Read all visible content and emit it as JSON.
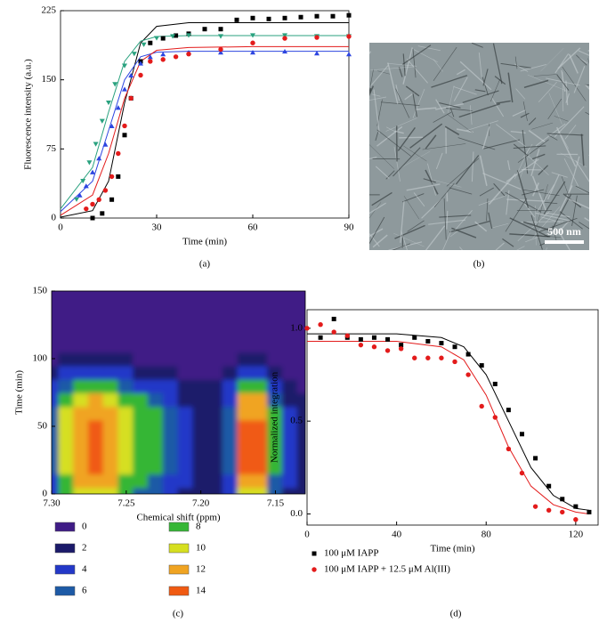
{
  "chart_data": [
    {
      "type": "scatter",
      "xlabel": "Time (min)",
      "ylabel": "Fluorescence intensity (a.u.)",
      "caption": "(a)",
      "xlim": [
        0,
        90
      ],
      "ylim": [
        0,
        225
      ],
      "xticks": [
        0,
        30,
        60,
        90
      ],
      "yticks": [
        0,
        75,
        150,
        225
      ],
      "series": [
        {
          "color": "#000000",
          "marker": "square",
          "x": [
            10,
            13,
            16,
            18,
            20,
            22,
            25,
            28,
            32,
            36,
            40,
            45,
            50,
            55,
            60,
            65,
            70,
            75,
            80,
            85,
            90
          ],
          "values": [
            0,
            5,
            20,
            45,
            90,
            130,
            170,
            190,
            195,
            198,
            200,
            205,
            205,
            215,
            217,
            216,
            217,
            218,
            219,
            219,
            220
          ]
        },
        {
          "color": "#2aa27f",
          "marker": "triangle-down",
          "x": [
            5,
            7,
            9,
            11,
            13,
            15,
            17,
            20,
            23,
            26,
            30,
            35,
            40,
            50,
            60,
            70,
            80,
            90
          ],
          "values": [
            20,
            40,
            60,
            80,
            105,
            125,
            145,
            165,
            178,
            188,
            195,
            197,
            198,
            197,
            198,
            198,
            197,
            197
          ]
        },
        {
          "color": "#2d45e0",
          "marker": "triangle-up",
          "x": [
            6,
            8,
            10,
            12,
            14,
            16,
            18,
            20,
            22,
            25,
            28,
            32,
            40,
            50,
            60,
            70,
            80,
            90
          ],
          "values": [
            25,
            35,
            50,
            65,
            80,
            100,
            120,
            140,
            155,
            168,
            175,
            178,
            180,
            180,
            180,
            181,
            179,
            178
          ]
        },
        {
          "color": "#e31b1b",
          "marker": "circle",
          "x": [
            8,
            10,
            12,
            14,
            16,
            18,
            20,
            22,
            25,
            28,
            32,
            36,
            40,
            50,
            60,
            70,
            80,
            90
          ],
          "values": [
            10,
            15,
            20,
            30,
            45,
            70,
            100,
            130,
            155,
            170,
            172,
            175,
            178,
            183,
            190,
            195,
            196,
            197
          ]
        }
      ],
      "fits": [
        {
          "color": "#000000",
          "x": [
            0,
            10,
            15,
            20,
            25,
            30,
            40,
            60,
            90
          ],
          "values": [
            1,
            8,
            40,
            125,
            190,
            208,
            212,
            212,
            212
          ]
        },
        {
          "color": "#2aa27f",
          "x": [
            0,
            10,
            15,
            20,
            25,
            30,
            40,
            60,
            90
          ],
          "values": [
            10,
            55,
            115,
            170,
            192,
            197,
            198,
            198,
            198
          ]
        },
        {
          "color": "#2d45e0",
          "x": [
            0,
            10,
            15,
            20,
            25,
            30,
            40,
            60,
            90
          ],
          "values": [
            7,
            40,
            95,
            150,
            175,
            180,
            181,
            181,
            181
          ]
        },
        {
          "color": "#e31b1b",
          "x": [
            0,
            10,
            15,
            20,
            25,
            30,
            40,
            60,
            90
          ],
          "values": [
            3,
            25,
            70,
            130,
            170,
            182,
            185,
            186,
            186
          ]
        }
      ]
    },
    {
      "type": "heatmap",
      "xlabel": "Chemical shift (ppm)",
      "ylabel": "Time (min)",
      "caption": "(c)",
      "xlim": [
        7.3,
        7.13
      ],
      "ylim": [
        0,
        150
      ],
      "xticks": [
        {
          "value": 7.3,
          "label": "7.30"
        },
        7.25,
        {
          "value": 7.2,
          "label": "7.20"
        },
        7.15
      ],
      "yticks": [
        0,
        50,
        100,
        150
      ],
      "x": [
        7.3,
        7.29,
        7.28,
        7.27,
        7.26,
        7.25,
        7.24,
        7.23,
        7.22,
        7.21,
        7.2,
        7.19,
        7.18,
        7.17,
        7.16,
        7.15,
        7.14,
        7.13
      ],
      "y": [
        0,
        10,
        20,
        30,
        40,
        50,
        60,
        70,
        80,
        90,
        100,
        110,
        120,
        130,
        140,
        150
      ],
      "z": [
        [
          5,
          8,
          10,
          11,
          10,
          8,
          7,
          6,
          5,
          3,
          2,
          2,
          5,
          11,
          11,
          6,
          3,
          2
        ],
        [
          5,
          9,
          12,
          13,
          12,
          9,
          8,
          7,
          5,
          4,
          3,
          3,
          5,
          13,
          13,
          7,
          4,
          2
        ],
        [
          6,
          10,
          13,
          14,
          13,
          10,
          9,
          8,
          6,
          4,
          3,
          3,
          6,
          14,
          14,
          8,
          4,
          2
        ],
        [
          6,
          10,
          13,
          14,
          13,
          10,
          9,
          8,
          6,
          4,
          3,
          3,
          6,
          14,
          14,
          8,
          4,
          2
        ],
        [
          6,
          10,
          13,
          14,
          13,
          10,
          9,
          8,
          6,
          4,
          3,
          3,
          6,
          14,
          14,
          8,
          4,
          2
        ],
        [
          6,
          10,
          13,
          14,
          13,
          10,
          9,
          8,
          6,
          4,
          3,
          3,
          6,
          14,
          14,
          8,
          4,
          2
        ],
        [
          6,
          10,
          12,
          13,
          12,
          10,
          9,
          8,
          6,
          4,
          3,
          3,
          6,
          13,
          13,
          8,
          4,
          2
        ],
        [
          5,
          9,
          11,
          12,
          11,
          9,
          8,
          7,
          5,
          3,
          3,
          3,
          5,
          12,
          12,
          7,
          3,
          2
        ],
        [
          4,
          6,
          8,
          8,
          8,
          6,
          5,
          5,
          4,
          2,
          2,
          2,
          4,
          8,
          8,
          5,
          2,
          1
        ],
        [
          2,
          4,
          5,
          5,
          5,
          4,
          3,
          3,
          2,
          1,
          1,
          1,
          2,
          5,
          5,
          3,
          1,
          1
        ],
        [
          1,
          2,
          2,
          2,
          2,
          2,
          1,
          1,
          1,
          1,
          1,
          1,
          1,
          2,
          2,
          1,
          1,
          1
        ],
        [
          1,
          1,
          1,
          1,
          1,
          1,
          1,
          1,
          1,
          1,
          1,
          1,
          1,
          1,
          1,
          1,
          1,
          1
        ],
        [
          0,
          0,
          0,
          0,
          0,
          0,
          0,
          0,
          0,
          0,
          0,
          0,
          0,
          0,
          0,
          0,
          0,
          0
        ],
        [
          0,
          0,
          0,
          0,
          0,
          0,
          0,
          0,
          0,
          0,
          0,
          0,
          0,
          0,
          0,
          0,
          0,
          0
        ],
        [
          0,
          0,
          0,
          0,
          0,
          0,
          0,
          0,
          0,
          0,
          0,
          0,
          0,
          0,
          0,
          0,
          0,
          0
        ],
        [
          0,
          0,
          0,
          0,
          0,
          0,
          0,
          0,
          0,
          0,
          0,
          0,
          0,
          0,
          0,
          0,
          0,
          0
        ]
      ],
      "levels": [
        0,
        2,
        4,
        6,
        8,
        10,
        12,
        14
      ],
      "colors": [
        "#3f1c86",
        "#1b1a6a",
        "#2338c8",
        "#1d5aa6",
        "#36b636",
        "#d6df20",
        "#f0a422",
        "#f05a12"
      ]
    },
    {
      "type": "scatter",
      "xlabel": "Time (min)",
      "ylabel": "Normalized integration",
      "caption": "(d)",
      "xlim": [
        0,
        130
      ],
      "ylim": [
        -0.06,
        1.1
      ],
      "xticks": [
        0,
        40,
        80,
        120
      ],
      "yticks": [
        {
          "value": 0,
          "label": "0.0"
        },
        {
          "value": 0.5,
          "label": "0.5"
        },
        {
          "value": 1,
          "label": "1.0"
        }
      ],
      "series": [
        {
          "name": "100 μM IAPP",
          "color": "#000000",
          "marker": "square",
          "x": [
            6,
            12,
            18,
            24,
            30,
            36,
            42,
            48,
            54,
            60,
            66,
            72,
            78,
            84,
            90,
            96,
            102,
            108,
            114,
            120,
            126
          ],
          "values": [
            0.95,
            1.05,
            0.95,
            0.94,
            0.95,
            0.94,
            0.91,
            0.95,
            0.93,
            0.92,
            0.9,
            0.86,
            0.8,
            0.7,
            0.56,
            0.43,
            0.3,
            0.15,
            0.08,
            0.04,
            0.01
          ]
        },
        {
          "name": "100 μM IAPP + 12.5 μM Al(III)",
          "color": "#e31b1b",
          "marker": "circle",
          "x": [
            0,
            6,
            12,
            18,
            24,
            30,
            36,
            42,
            48,
            54,
            60,
            66,
            72,
            78,
            84,
            90,
            96,
            102,
            108,
            114,
            120
          ],
          "values": [
            1.0,
            1.02,
            0.98,
            0.96,
            0.91,
            0.9,
            0.88,
            0.89,
            0.84,
            0.84,
            0.84,
            0.82,
            0.75,
            0.58,
            0.52,
            0.35,
            0.22,
            0.04,
            0.02,
            0.01,
            -0.03
          ]
        }
      ],
      "fits": [
        {
          "color": "#000000",
          "x": [
            0,
            40,
            60,
            70,
            80,
            90,
            100,
            110,
            120,
            126
          ],
          "values": [
            0.97,
            0.97,
            0.95,
            0.9,
            0.75,
            0.5,
            0.25,
            0.1,
            0.03,
            0.02
          ]
        },
        {
          "color": "#e31b1b",
          "x": [
            0,
            40,
            60,
            70,
            80,
            90,
            100,
            110,
            120,
            126
          ],
          "values": [
            0.93,
            0.93,
            0.9,
            0.83,
            0.64,
            0.36,
            0.15,
            0.05,
            0.01,
            0.0
          ]
        }
      ]
    }
  ],
  "image_panel": {
    "scale_bar": "500 nm",
    "caption": "(b)"
  }
}
